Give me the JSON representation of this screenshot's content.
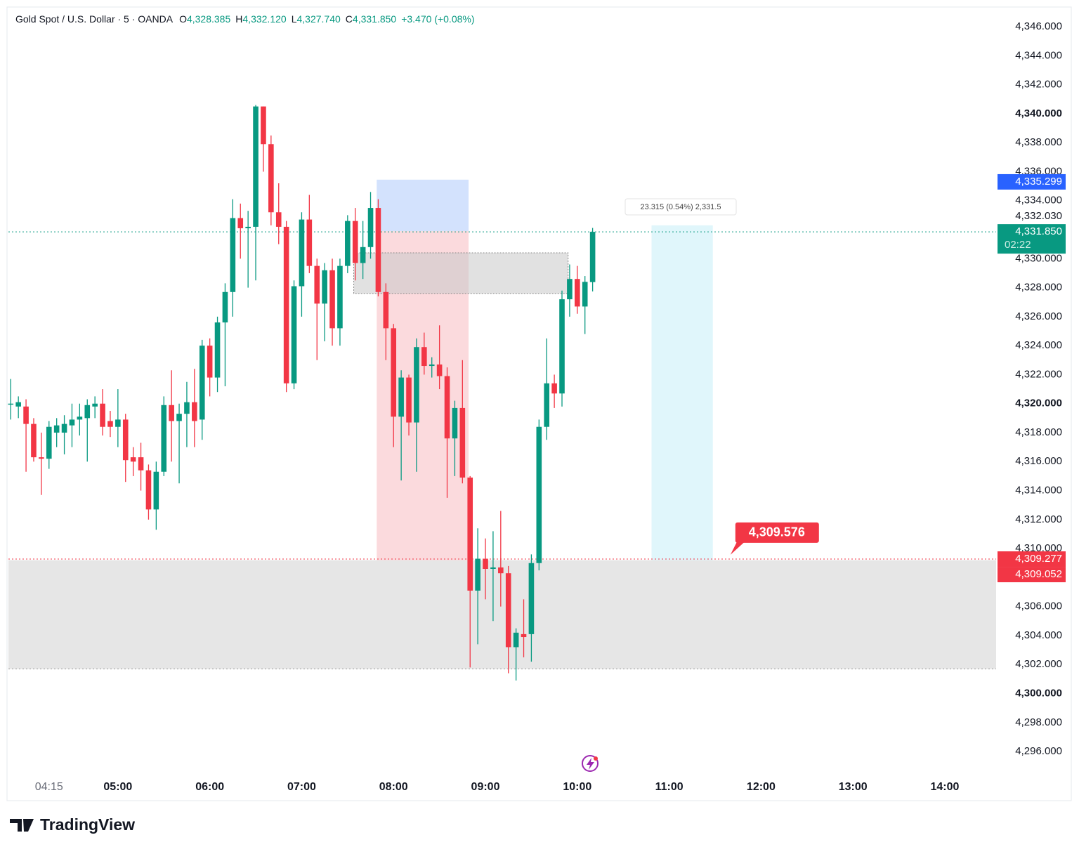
{
  "chart_data": {
    "type": "candlestick",
    "header": {
      "symbol": "Gold Spot / U.S. Dollar · 5 · OANDA",
      "ohlc": [
        {
          "key": "O",
          "text": "4,328.385"
        },
        {
          "key": "H",
          "text": "4,332.120"
        },
        {
          "key": "L",
          "text": "4,327.740"
        },
        {
          "key": "C",
          "text": "4,331.850"
        }
      ],
      "change": "+3.470 (+0.08%)"
    },
    "up_color": "#089981",
    "down_color": "#f23645",
    "open": [
      4320,
      4319.8,
      4319.8,
      4318.6,
      4316.3,
      4316.2,
      4318,
      4318,
      4318.5,
      4318.9,
      4319,
      4319.8,
      4320,
      4318.8,
      4318.4,
      4318.9,
      4316.3,
      4316.3,
      4315.4,
      4312.7,
      4315.3,
      4319.9,
      4318.8,
      4319.3,
      4320.1,
      4318.9,
      4324,
      4321.8,
      4325.6,
      4327.7,
      4332.8,
      4332.1,
      4332.2,
      4340.5,
      4337.9,
      4333.2,
      4332.2,
      4321.4,
      4328.1,
      4332.7,
      4329.5,
      4326.9,
      4329.2,
      4325.2,
      4329.5,
      4332.6,
      4329.7,
      4330.8,
      4333.5,
      4327.7,
      4325.2,
      4319.1,
      4321.8,
      4318.7,
      4323.9,
      4322.6,
      4322.7,
      4321.9,
      4317.6,
      4319.7,
      4314.9,
      4307.1,
      4309.3,
      4308.6,
      4308.7,
      4308.3,
      4303.2,
      4304.1,
      4304.1,
      4309,
      4318.4,
      4321.4,
      4320.7,
      4327.2,
      4328.6,
      4326.7,
      4328.385
    ],
    "high": [
      4321.7,
      4320.5,
      4320.3,
      4319,
      4318,
      4318.8,
      4319,
      4319.2,
      4320,
      4320,
      4320.3,
      4320.5,
      4321,
      4319.5,
      4321,
      4319.3,
      4317,
      4317.3,
      4315.8,
      4316,
      4320.5,
      4322.3,
      4320,
      4321.5,
      4322.4,
      4324.4,
      4324.5,
      4326,
      4328.3,
      4334.1,
      4333.8,
      4333.3,
      4340.6,
      4340.5,
      4338.5,
      4335.2,
      4332.6,
      4328.5,
      4333.2,
      4334.4,
      4330,
      4329.7,
      4330,
      4330,
      4333,
      4333.5,
      4332.6,
      4334.6,
      4334.1,
      4328.3,
      4325.5,
      4322.3,
      4322,
      4324.5,
      4324.9,
      4323.2,
      4325.4,
      4322.5,
      4320.2,
      4323,
      4315,
      4311.4,
      4310.7,
      4311.2,
      4312.6,
      4308.8,
      4304.5,
      4306.5,
      4309.6,
      4318.9,
      4324.5,
      4322,
      4327.8,
      4329.6,
      4329.5,
      4328.8,
      4332.12
    ],
    "low": [
      4318.9,
      4319,
      4315.3,
      4316,
      4313.7,
      4315.5,
      4317,
      4316.5,
      4317,
      4317.8,
      4316,
      4319,
      4317.8,
      4317.7,
      4317,
      4314.6,
      4315,
      4314,
      4312,
      4311.3,
      4315,
      4316,
      4314.5,
      4317,
      4317,
      4317.5,
      4320.5,
      4320.8,
      4321.2,
      4326,
      4330,
      4328,
      4328.5,
      4336,
      4332.3,
      4331,
      4320.8,
      4321,
      4326,
      4329,
      4323,
      4324.3,
      4324,
      4324,
      4329,
      4328.5,
      4328.6,
      4330,
      4327.4,
      4323,
      4317,
      4314.7,
      4317.8,
      4315.3,
      4322,
      4321.8,
      4321,
      4313.5,
      4315,
      4314.5,
      4301.8,
      4303.4,
      4306.5,
      4305,
      4306,
      4301.4,
      4300.9,
      4302.5,
      4302.2,
      4308.5,
      4317.5,
      4319.7,
      4319.8,
      4326,
      4326.2,
      4324.8,
      4327.74
    ],
    "close": [
      4320,
      4320.1,
      4318.6,
      4316.3,
      4316.2,
      4318.4,
      4318.5,
      4318.6,
      4318.9,
      4319.1,
      4319.9,
      4320,
      4318.4,
      4318.4,
      4318.9,
      4316.1,
      4316,
      4315.4,
      4312.7,
      4315.3,
      4319.9,
      4318.8,
      4319.3,
      4320.1,
      4318.8,
      4324,
      4321.8,
      4325.6,
      4327.7,
      4332.8,
      4332.1,
      4332.2,
      4340.5,
      4337.9,
      4333.2,
      4332.2,
      4321.4,
      4328.1,
      4332.7,
      4329.5,
      4326.9,
      4329.2,
      4325.2,
      4329.5,
      4332.6,
      4329.7,
      4330.8,
      4333.5,
      4327.7,
      4325.2,
      4319.1,
      4321.8,
      4318.7,
      4323.9,
      4322.6,
      4322.7,
      4321.9,
      4317.6,
      4319.7,
      4314.9,
      4307.1,
      4309.3,
      4308.6,
      4308.7,
      4308.3,
      4303.2,
      4304.2,
      4303.9,
      4309,
      4318.4,
      4321.4,
      4320.7,
      4327.2,
      4328.6,
      4326.7,
      4328.4,
      4331.85
    ],
    "xlim": [
      -0.3,
      128.7
    ],
    "xticks": [
      {
        "value": 5,
        "label": "04:15"
      },
      {
        "value": 14,
        "label": "05:00"
      },
      {
        "value": 26,
        "label": "06:00"
      },
      {
        "value": 38,
        "label": "07:00"
      },
      {
        "value": 50,
        "label": "08:00"
      },
      {
        "value": 62,
        "label": "09:00"
      },
      {
        "value": 74,
        "label": "10:00"
      },
      {
        "value": 86,
        "label": "11:00"
      },
      {
        "value": 98,
        "label": "12:00"
      },
      {
        "value": 110,
        "label": "13:00"
      },
      {
        "value": 122,
        "label": "14:00"
      }
    ],
    "ylim": [
      4294.55,
      4347.36
    ],
    "yticks": [
      {
        "value": 4346,
        "label": "4,346.000"
      },
      {
        "value": 4344,
        "label": "4,344.000"
      },
      {
        "value": 4342,
        "label": "4,342.000"
      },
      {
        "value": 4340,
        "label": "4,340.000"
      },
      {
        "value": 4338,
        "label": "4,338.000"
      },
      {
        "value": 4336,
        "label": "4,336.000"
      },
      {
        "value": 4334,
        "label": "4,334.000"
      },
      {
        "value": 4330,
        "label": "4,330.000"
      },
      {
        "value": 4328,
        "label": "4,328.000"
      },
      {
        "value": 4326,
        "label": "4,326.000"
      },
      {
        "value": 4324,
        "label": "4,324.000"
      },
      {
        "value": 4322,
        "label": "4,322.000"
      },
      {
        "value": 4320,
        "label": "4,320.000"
      },
      {
        "value": 4318,
        "label": "4,318.000"
      },
      {
        "value": 4316,
        "label": "4,316.000"
      },
      {
        "value": 4314,
        "label": "4,314.000"
      },
      {
        "value": 4312,
        "label": "4,312.000"
      },
      {
        "value": 4310,
        "label": "4,310.000"
      },
      {
        "value": 4306,
        "label": "4,306.000"
      },
      {
        "value": 4304,
        "label": "4,304.000"
      },
      {
        "value": 4302,
        "label": "4,302.000"
      },
      {
        "value": 4300,
        "label": "4,300.000"
      },
      {
        "value": 4298,
        "label": "4,298.000"
      },
      {
        "value": 4296,
        "label": "4,296.000"
      }
    ],
    "zones": [
      {
        "x": [
          -0.3,
          128.7
        ],
        "y": [
          4301.7,
          4309.2
        ],
        "color": "#e6e6e6",
        "opacity": 1
      },
      {
        "x": [
          47.8,
          59.8
        ],
        "y": [
          4331.9,
          4335.45
        ],
        "color": "#d3e2fd",
        "opacity": 1
      },
      {
        "x": [
          47.8,
          59.8
        ],
        "y": [
          4309.2,
          4331.9
        ],
        "color": "#fbdadd",
        "opacity": 1
      },
      {
        "x": [
          83.7,
          91.7
        ],
        "y": [
          4309.2,
          4332.3
        ],
        "color": "#e0f6fb",
        "opacity": 1
      },
      {
        "x": [
          44.8,
          72.8
        ],
        "y": [
          4327.6,
          4330.4
        ],
        "color": "#c8c8c8",
        "opacity": 0.55
      }
    ],
    "levels": [
      {
        "value": 4331.85,
        "color": "#089981"
      },
      {
        "value": 4309.277,
        "color": "#f23645"
      },
      {
        "value": 4301.7,
        "color": "#9a9a9a"
      }
    ],
    "price_labels": [
      {
        "value": 4335.299,
        "label": "4,335.299",
        "color": "#2962ff"
      },
      {
        "value": 4331.85,
        "label": "4,331.850",
        "sublabel": "02:22",
        "color": "#089981"
      },
      {
        "value": 4309.277,
        "label": "4,309.277",
        "color": "#f23645"
      },
      {
        "value": 4309.052,
        "label": "4,309.052",
        "color": "#f23645"
      },
      {
        "value": 4332.03,
        "label": "4,332.030"
      }
    ],
    "callout": {
      "value": 4309.576,
      "label": "4,309.576",
      "x": 94,
      "color": "#f23645"
    },
    "measure_label": "23.315 (0.54%) 2,331.5",
    "brand": "TradingView"
  }
}
